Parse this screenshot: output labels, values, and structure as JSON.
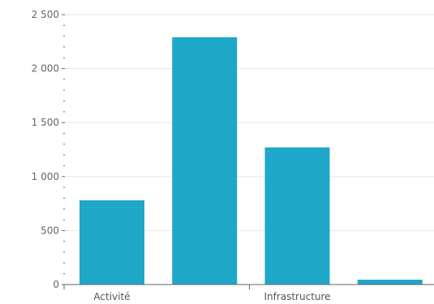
{
  "chart_data": {
    "type": "bar",
    "categories": [
      "Activité",
      "",
      "Infrastructure",
      ""
    ],
    "values": [
      780,
      2290,
      1270,
      45
    ],
    "ylim": [
      0,
      2500
    ],
    "yticks": [
      0,
      500,
      1000,
      1500,
      2000,
      2500
    ],
    "ytick_labels": [
      "0",
      "500",
      "1 000",
      "1 500",
      "2 000",
      "2 500"
    ],
    "grid": true,
    "bar_color": "#1fa7c9",
    "grid_color": "#e6e6e6",
    "axis_color": "#666666"
  }
}
